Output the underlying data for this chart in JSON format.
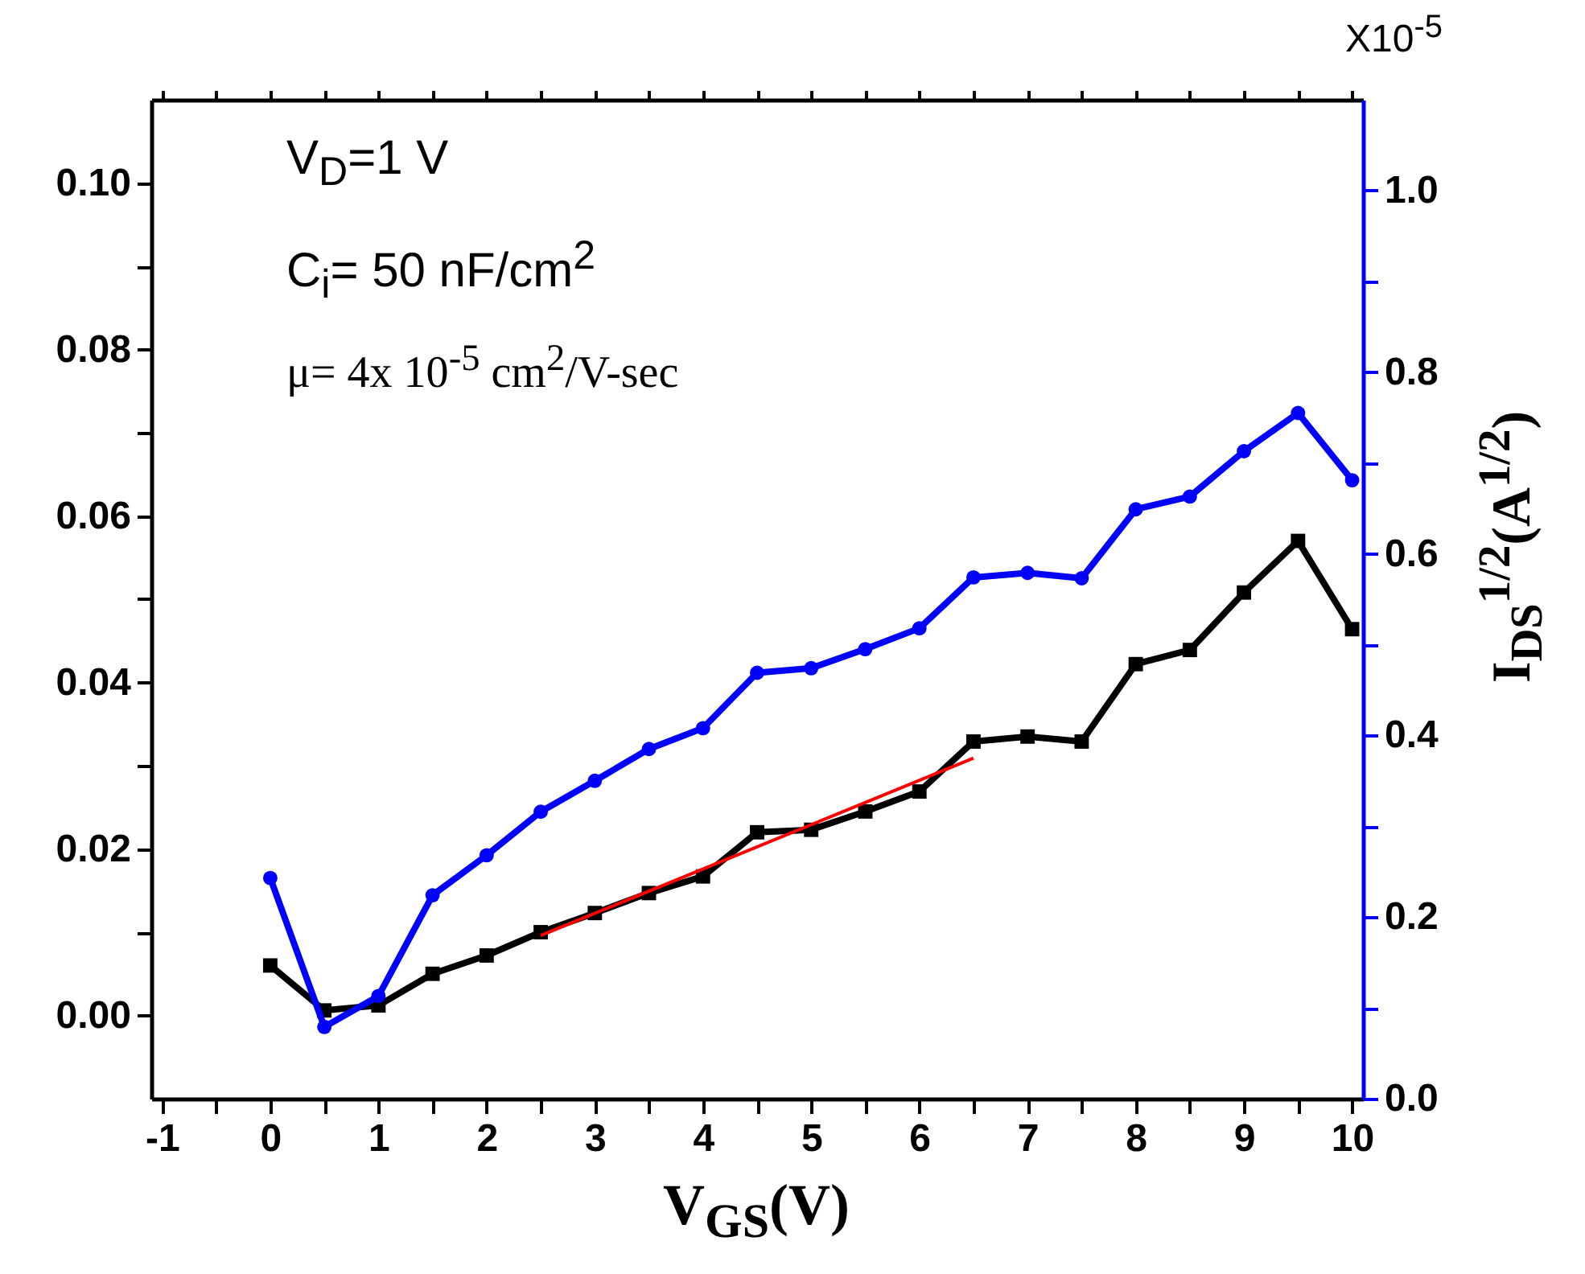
{
  "chart_data": {
    "type": "line",
    "xlabel": "V$_{GS}$(V)",
    "y2label": "I$_{DS}$$^{1/2}$(A$^{1/2}$)",
    "annotations": [
      "V$_{D}$=1 V",
      "C$_{i}$= 50 nF/cm$^{2}$",
      "μ= 4x 10$^{-5}$ cm$^{2}$/V-sec",
      "X10$^{-5}$"
    ],
    "x": [
      0,
      0.5,
      1,
      1.5,
      2,
      2.5,
      3,
      3.5,
      4,
      4.5,
      5,
      5.5,
      6,
      6.5,
      7,
      7.5,
      8,
      8.5,
      9,
      9.5,
      10
    ],
    "series": [
      {
        "color": "#000000",
        "marker": "square",
        "values": [
          0.006,
          0.0006,
          0.0012,
          0.005,
          0.0072,
          0.01,
          0.0123,
          0.0147,
          0.0167,
          0.022,
          0.0223,
          0.0245,
          0.0269,
          0.0329,
          0.0335,
          0.0329,
          0.0422,
          0.0439,
          0.0508,
          0.057,
          0.0464
        ]
      },
      {
        "color": "#ff0000",
        "marker": "none",
        "x": [
          2.5,
          6.5
        ],
        "values": [
          0.0096,
          0.0309
        ]
      },
      {
        "color": "#0000ff",
        "marker": "circle",
        "axis": "y2",
        "values": [
          0.243,
          0.079,
          0.113,
          0.224,
          0.268,
          0.316,
          0.35,
          0.385,
          0.408,
          0.469,
          0.474,
          0.495,
          0.518,
          0.574,
          0.579,
          0.573,
          0.649,
          0.663,
          0.713,
          0.755,
          0.681
        ]
      }
    ],
    "xlim": [
      -1.1,
      10.1
    ],
    "xticks": [
      -1,
      {
        "value": -0.5,
        "label": null
      },
      0,
      {
        "value": 0.5,
        "label": null
      },
      1,
      {
        "value": 1.5,
        "label": null
      },
      2,
      {
        "value": 2.5,
        "label": null
      },
      3,
      {
        "value": 3.5,
        "label": null
      },
      4,
      {
        "value": 4.5,
        "label": null
      },
      5,
      {
        "value": 5.5,
        "label": null
      },
      6,
      {
        "value": 6.5,
        "label": null
      },
      7,
      {
        "value": 7.5,
        "label": null
      },
      8,
      {
        "value": 8.5,
        "label": null
      },
      9,
      {
        "value": 9.5,
        "label": null
      },
      10
    ],
    "ylim": [
      -0.01,
      0.11
    ],
    "yticks": [
      {
        "value": 0,
        "label": "0.00"
      },
      {
        "value": 0.01,
        "label": null
      },
      {
        "value": 0.02,
        "label": "0.02"
      },
      {
        "value": 0.03,
        "label": null
      },
      {
        "value": 0.04,
        "label": "0.04"
      },
      {
        "value": 0.05,
        "label": null
      },
      {
        "value": 0.06,
        "label": "0.06"
      },
      {
        "value": 0.07,
        "label": null
      },
      {
        "value": 0.08,
        "label": "0.08"
      },
      {
        "value": 0.09,
        "label": null
      },
      {
        "value": 0.1,
        "label": "0.10"
      }
    ],
    "y2lim": [
      0,
      1.1
    ],
    "y2ticks": [
      {
        "value": 0,
        "label": "0.0"
      },
      {
        "value": 0.1,
        "label": null
      },
      {
        "value": 0.2,
        "label": "0.2"
      },
      {
        "value": 0.3,
        "label": null
      },
      {
        "value": 0.4,
        "label": "0.4"
      },
      {
        "value": 0.5,
        "label": null
      },
      {
        "value": 0.6,
        "label": "0.6"
      },
      {
        "value": 0.7,
        "label": null
      },
      {
        "value": 0.8,
        "label": "0.8"
      },
      {
        "value": 0.9,
        "label": null
      },
      {
        "value": 1.0,
        "label": "1.0"
      }
    ],
    "grid": false
  }
}
